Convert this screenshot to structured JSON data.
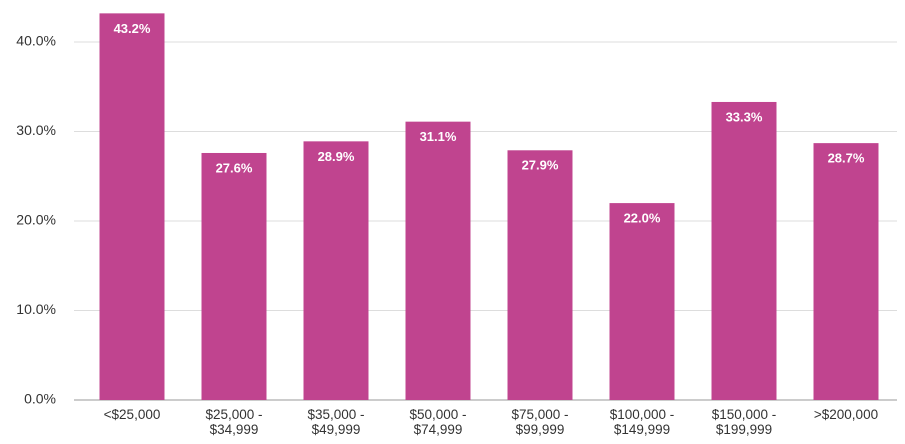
{
  "chart_data": {
    "type": "bar",
    "categories": [
      "<$25,000",
      "$25,000 - $34,999",
      "$35,000 - $49,999",
      "$50,000 - $74,999",
      "$75,000 - $99,999",
      "$100,000 - $149,999",
      "$150,000 - $199,999",
      ">$200,000"
    ],
    "values": [
      43.2,
      27.6,
      28.9,
      31.1,
      27.9,
      22.0,
      33.3,
      28.7
    ],
    "value_labels": [
      "43.2%",
      "27.6%",
      "28.9%",
      "31.1%",
      "27.9%",
      "22.0%",
      "33.3%",
      "28.7%"
    ],
    "color": "#c0448f",
    "ylim": [
      0,
      44
    ],
    "yticks": [
      {
        "value": 0,
        "label": "0.0%"
      },
      {
        "value": 10,
        "label": "10.0%"
      },
      {
        "value": 20,
        "label": "20.0%"
      },
      {
        "value": 30,
        "label": "30.0%"
      },
      {
        "value": 40,
        "label": "40.0%"
      }
    ],
    "grid": true
  }
}
